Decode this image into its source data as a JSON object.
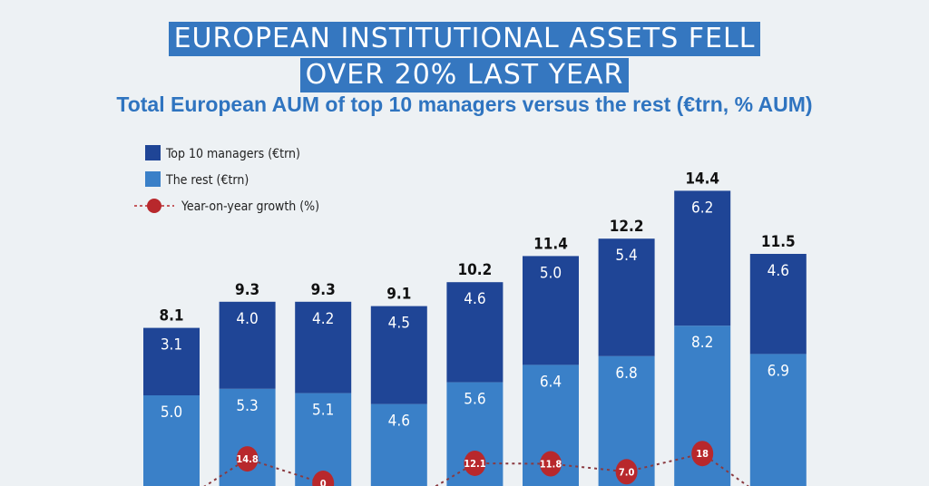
{
  "title_line1": "EUROPEAN INSTITUTIONAL ASSETS FELL",
  "title_line2": "OVER 20% LAST YEAR",
  "subtitle": "Total European AUM of top 10 managers versus the rest (€trn, % AUM)",
  "chart_data": {
    "type": "bar",
    "stacked": true,
    "legend_placement": "top-left",
    "grid": false,
    "colors": {
      "top10": "#1f4596",
      "rest": "#3a80c8",
      "growth": "#b8282c",
      "background": "#edf1f4"
    },
    "series": [
      {
        "name": "Top 10 managers (€trn)",
        "values": [
          3.1,
          4.0,
          4.2,
          4.5,
          4.6,
          5.0,
          5.4,
          6.2,
          4.6
        ]
      },
      {
        "name": "The rest (€trn)",
        "values": [
          5.0,
          5.3,
          5.1,
          4.6,
          5.6,
          6.4,
          6.8,
          8.2,
          6.9
        ]
      }
    ],
    "totals": [
      8.1,
      9.3,
      9.3,
      9.1,
      10.2,
      11.4,
      12.2,
      14.4,
      11.5
    ],
    "growth": {
      "name": "Year-on-year growth (%)",
      "values": [
        null,
        14.8,
        0,
        null,
        12.1,
        11.8,
        7.0,
        18,
        null
      ],
      "labels": [
        null,
        "14.8",
        "0",
        null,
        "12.1",
        "11.8",
        "7.0",
        "18",
        null
      ]
    }
  }
}
